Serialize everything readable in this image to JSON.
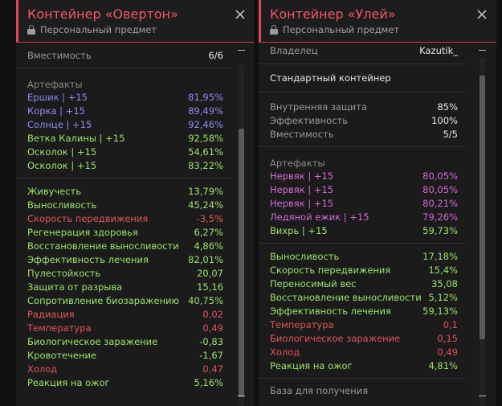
{
  "left": {
    "title": "Контейнер «Овертон»",
    "subtitle": "Персональный предмет",
    "capacity": {
      "label": "Вместимость",
      "value": "6/6"
    },
    "artifacts_header": "Артефакты",
    "artifacts": [
      {
        "name": "Ершик | +15",
        "value": "81,95%",
        "color": "blue"
      },
      {
        "name": "Корка | +15",
        "value": "89,49%",
        "color": "blue"
      },
      {
        "name": "Солнце | +15",
        "value": "92,46%",
        "color": "blue"
      },
      {
        "name": "Ветка Калины | +15",
        "value": "92,58%",
        "color": "green"
      },
      {
        "name": "Осколок | +15",
        "value": "54,61%",
        "color": "green"
      },
      {
        "name": "Осколок | +15",
        "value": "83,22%",
        "color": "green"
      }
    ],
    "stats": [
      {
        "name": "Живучесть",
        "value": "13,79%",
        "color": "green"
      },
      {
        "name": "Выносливость",
        "value": "45,24%",
        "color": "green"
      },
      {
        "name": "Скорость передвижения",
        "value": "-3,5%",
        "color": "red"
      },
      {
        "name": "Регенерация здоровья",
        "value": "6,27%",
        "color": "green"
      },
      {
        "name": "Восстановление выносливости",
        "value": "4,86%",
        "color": "green"
      },
      {
        "name": "Эффективность лечения",
        "value": "82,01%",
        "color": "green"
      },
      {
        "name": "Пулестойкость",
        "value": "20,07",
        "color": "green"
      },
      {
        "name": "Защита от разрыва",
        "value": "15,16",
        "color": "green"
      },
      {
        "name": "Сопротивление биозаражению",
        "value": "40,75%",
        "color": "green"
      },
      {
        "name": "Радиация",
        "value": "0,02",
        "color": "red"
      },
      {
        "name": "Температура",
        "value": "0,49",
        "color": "red"
      },
      {
        "name": "Биологическое заражение",
        "value": "-0,83",
        "color": "green"
      },
      {
        "name": "Кровотечение",
        "value": "-1,67",
        "color": "green"
      },
      {
        "name": "Холод",
        "value": "0,47",
        "color": "red"
      },
      {
        "name": "Реакция на ожог",
        "value": "5,16%",
        "color": "green"
      }
    ]
  },
  "right": {
    "title": "Контейнер «Улей»",
    "subtitle": "Персональный предмет",
    "owner": {
      "label": "Владелец",
      "value": "Kazutik_"
    },
    "container_type": "Стандартный контейнер",
    "props": [
      {
        "name": "Внутренняя защита",
        "value": "85%"
      },
      {
        "name": "Эффективность",
        "value": "100%"
      },
      {
        "name": "Вместимость",
        "value": "5/5"
      }
    ],
    "artifacts_header": "Артефакты",
    "artifacts": [
      {
        "name": "Нервяк | +15",
        "value": "80,05%",
        "color": "pink"
      },
      {
        "name": "Нервяк | +15",
        "value": "80,05%",
        "color": "pink"
      },
      {
        "name": "Нервяк | +15",
        "value": "80,21%",
        "color": "pink"
      },
      {
        "name": "Ледяной ежик | +15",
        "value": "79,26%",
        "color": "pink"
      },
      {
        "name": "Вихрь | +15",
        "value": "59,73%",
        "color": "green"
      }
    ],
    "stats": [
      {
        "name": "Выносливость",
        "value": "17,18%",
        "color": "green"
      },
      {
        "name": "Скорость передвижения",
        "value": "15,4%",
        "color": "green"
      },
      {
        "name": "Переносимый вес",
        "value": "35,08",
        "color": "green"
      },
      {
        "name": "Восстановление выносливости",
        "value": "5,12%",
        "color": "green"
      },
      {
        "name": "Эффективность лечения",
        "value": "59,13%",
        "color": "green"
      },
      {
        "name": "Температура",
        "value": "0,1",
        "color": "red"
      },
      {
        "name": "Биологическое заражение",
        "value": "0,15",
        "color": "red"
      },
      {
        "name": "Холод",
        "value": "0,49",
        "color": "red"
      },
      {
        "name": "Реакция на ожог",
        "value": "4,81%",
        "color": "green"
      }
    ],
    "footer_label": "База для получения"
  },
  "colors": {
    "accent": "#e0475a",
    "blue": "#8f8cf0",
    "green": "#9be46a",
    "red": "#e0545c",
    "pink": "#d46bd6"
  }
}
